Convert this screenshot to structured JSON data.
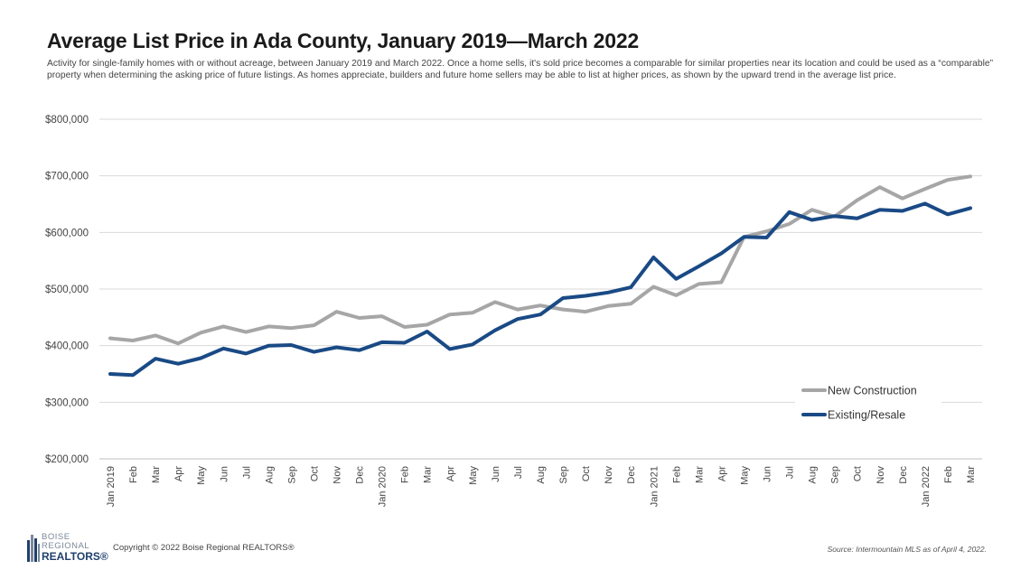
{
  "title": "Average List Price in Ada County, January 2019—March 2022",
  "subtitle": "Activity for single-family homes with or without acreage, between January 2019 and March 2022. Once a home sells, it's sold price becomes a comparable for similar properties near its location and could be used as a “comparable” property when determining the asking price of future listings. As homes appreciate, builders and future home sellers may be able to list at higher prices, as shown by the upward trend in the average list price.",
  "footer": {
    "copyright": "Copyright © 2022 Boise Regional REALTORS®",
    "source": "Source: Intermountain MLS as of April 4, 2022.",
    "logo_line1": "BOISE",
    "logo_line2": "REGIONAL",
    "logo_line3": "REALTORS®"
  },
  "chart_data": {
    "type": "line",
    "categories": [
      "Jan 2019",
      "Feb",
      "Mar",
      "Apr",
      "May",
      "Jun",
      "Jul",
      "Aug",
      "Sep",
      "Oct",
      "Nov",
      "Dec",
      "Jan 2020",
      "Feb",
      "Mar",
      "Apr",
      "May",
      "Jun",
      "Jul",
      "Aug",
      "Sep",
      "Oct",
      "Nov",
      "Dec",
      "Jan 2021",
      "Feb",
      "Mar",
      "Apr",
      "May",
      "Jun",
      "Jul",
      "Aug",
      "Sep",
      "Oct",
      "Nov",
      "Dec",
      "Jan 2022",
      "Feb",
      "Mar"
    ],
    "y_ticks": [
      "$200,000",
      "$300,000",
      "$400,000",
      "$500,000",
      "$600,000",
      "$700,000",
      "$800,000"
    ],
    "ylim": [
      200000,
      800000
    ],
    "grid": true,
    "legend_position": "bottom-right",
    "series": [
      {
        "name": "New Construction",
        "color": "#a6a6a6",
        "values": [
          413000,
          409000,
          418000,
          404000,
          423000,
          434000,
          424000,
          434000,
          431000,
          436000,
          460000,
          449000,
          452000,
          433000,
          437000,
          455000,
          458000,
          477000,
          464000,
          471000,
          464000,
          460000,
          470000,
          474000,
          504000,
          489000,
          509000,
          512000,
          592000,
          602000,
          615000,
          640000,
          628000,
          657000,
          680000,
          660000,
          677000,
          693000,
          699000
        ]
      },
      {
        "name": "Existing/Resale",
        "color": "#1a4a85",
        "values": [
          350000,
          348000,
          377000,
          368000,
          378000,
          395000,
          386000,
          400000,
          401000,
          389000,
          397000,
          392000,
          406000,
          405000,
          425000,
          394000,
          402000,
          427000,
          447000,
          455000,
          484000,
          488000,
          494000,
          503000,
          556000,
          518000,
          540000,
          563000,
          592000,
          591000,
          636000,
          622000,
          629000,
          625000,
          640000,
          638000,
          651000,
          632000,
          643000
        ]
      }
    ]
  }
}
